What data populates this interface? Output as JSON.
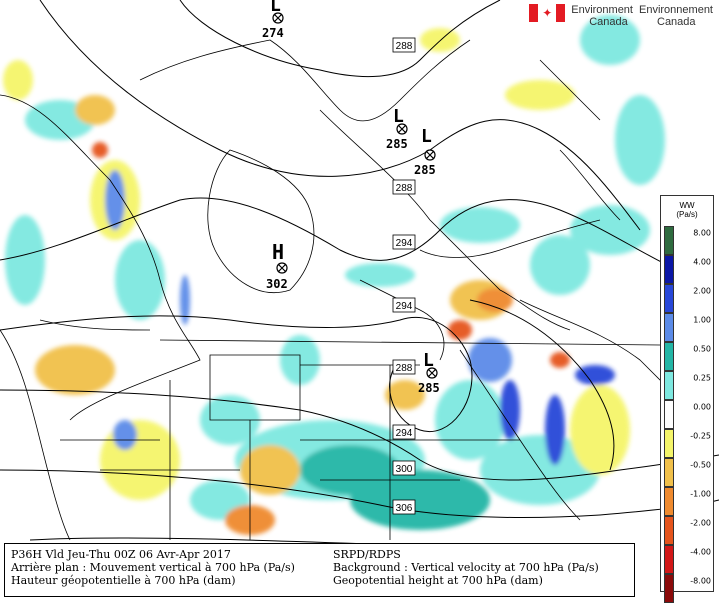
{
  "header": {
    "agency_fr": "Environnement",
    "agency_fr_2": "Canada",
    "agency_en": "Environment",
    "agency_en_2": "Canada"
  },
  "pressure_centers": [
    {
      "type": "L",
      "value": "274"
    },
    {
      "type": "L",
      "value": "285"
    },
    {
      "type": "L",
      "value": "285"
    },
    {
      "type": "H",
      "value": "302"
    },
    {
      "type": "L",
      "value": "285"
    }
  ],
  "contour_labels": [
    "288",
    "288",
    "294",
    "294",
    "288",
    "294",
    "300",
    "306"
  ],
  "legend": {
    "title_line1": "WW",
    "title_line2": "(Pa/s)",
    "items": [
      {
        "label": "8.00",
        "color": "#2e6b3f"
      },
      {
        "label": "4.00",
        "color": "#0b17a6"
      },
      {
        "label": "2.00",
        "color": "#2747d8"
      },
      {
        "label": "1.00",
        "color": "#5b8be8"
      },
      {
        "label": "0.50",
        "color": "#23b6a6"
      },
      {
        "label": "0.25",
        "color": "#7ee8e0"
      },
      {
        "label": "0.00",
        "color": "#ffffff"
      },
      {
        "label": "-0.25",
        "color": "#f5f56a"
      },
      {
        "label": "-0.50",
        "color": "#f1c04a"
      },
      {
        "label": "-1.00",
        "color": "#ef8a2e"
      },
      {
        "label": "-2.00",
        "color": "#e5541c"
      },
      {
        "label": "-4.00",
        "color": "#d21717"
      },
      {
        "label": "-8.00",
        "color": "#8b0a0a"
      }
    ]
  },
  "caption": {
    "left_line1": "P36H Vld Jeu-Thu 00Z 06 Avr-Apr 2017",
    "left_line2": "Arrière plan : Mouvement vertical à 700 hPa (Pa/s)",
    "left_line3": "Hauteur géopotentielle à 700 hPa (dam)",
    "right_line1": "SRPD/RDPS",
    "right_line2": "Background : Vertical velocity at 700 hPa (Pa/s)",
    "right_line3": "Geopotential height at 700 hPa (dam)"
  }
}
